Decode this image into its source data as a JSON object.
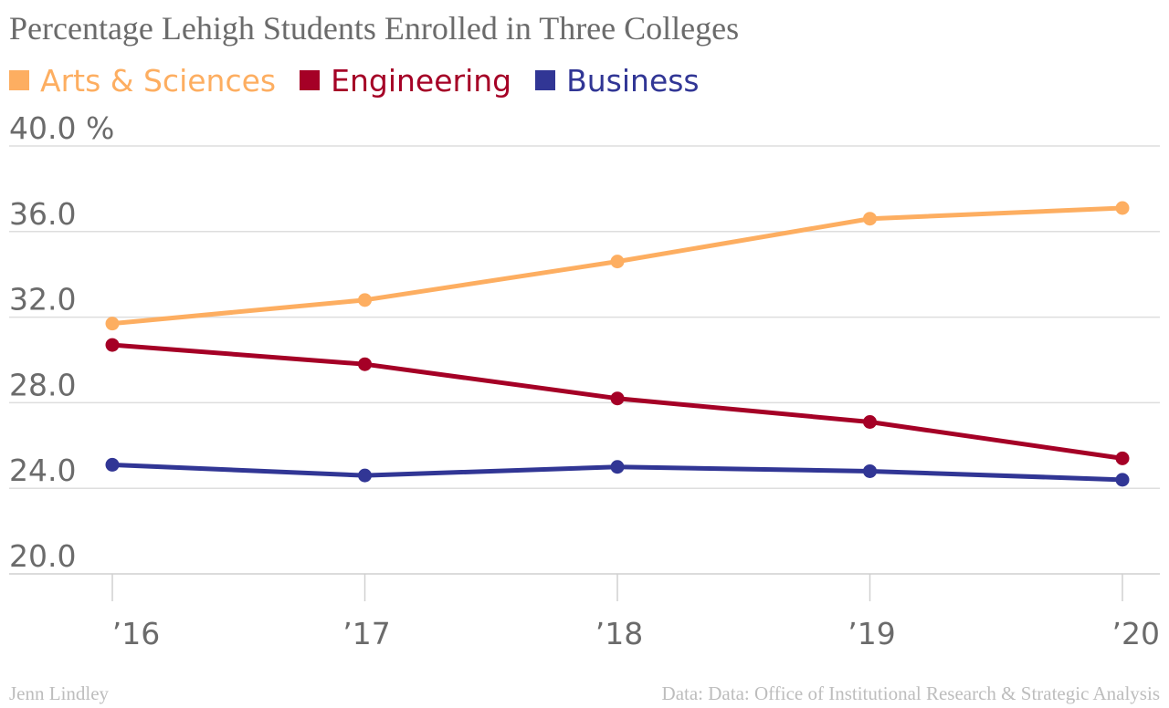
{
  "title": "Percentage Lehigh Students Enrolled in Three Colleges",
  "credit": "Jenn Lindley",
  "source": "Data: Data: Office of Institutional Research & Strategic Analysis",
  "chart_data": {
    "type": "line",
    "title": "Percentage Lehigh Students Enrolled in Three Colleges",
    "categories": [
      "’16",
      "’17",
      "’18",
      "’19",
      "’20"
    ],
    "ylim": [
      20,
      40
    ],
    "yticks": [
      20,
      24,
      28,
      32,
      36,
      40
    ],
    "ytick_labels": [
      "20.0",
      "24.0",
      "28.0",
      "32.0",
      "36.0",
      "40.0 %"
    ],
    "grid": true,
    "legend_position": "top-left",
    "series": [
      {
        "name": "Arts & Sciences",
        "color": "#fdae61",
        "values": [
          31.7,
          32.8,
          34.6,
          36.6,
          37.1
        ]
      },
      {
        "name": "Engineering",
        "color": "#a50026",
        "values": [
          30.7,
          29.8,
          28.2,
          27.1,
          25.4
        ]
      },
      {
        "name": "Business",
        "color": "#313695",
        "values": [
          25.1,
          24.6,
          25.0,
          24.8,
          24.4
        ]
      }
    ]
  }
}
